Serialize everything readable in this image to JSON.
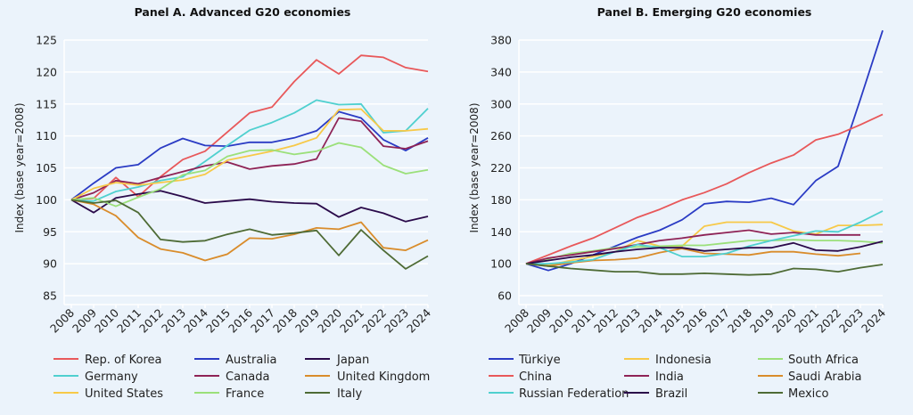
{
  "background": "#ebf3fb",
  "chart_data": [
    {
      "type": "line",
      "title": "Panel A. Advanced G20 economies",
      "ylabel": "Index (base year=2008)",
      "xlabel": "",
      "ylim": [
        85,
        125
      ],
      "yticks": [
        85,
        90,
        95,
        100,
        105,
        110,
        115,
        120,
        125
      ],
      "grid": true,
      "legend": "bottom",
      "x": [
        2008,
        2009,
        2010,
        2011,
        2012,
        2013,
        2014,
        2015,
        2016,
        2017,
        2018,
        2019,
        2020,
        2021,
        2022,
        2023,
        2024
      ],
      "series": [
        {
          "name": "Rep. of Korea",
          "color": "#e8585a",
          "values": [
            100,
            100.2,
            103.5,
            100.5,
            103.6,
            106.3,
            107.6,
            110.6,
            113.6,
            114.5,
            118.5,
            121.9,
            119.7,
            122.6,
            122.3,
            120.7,
            120.1
          ]
        },
        {
          "name": "Australia",
          "color": "#2a3bc4",
          "values": [
            100,
            102.6,
            105.0,
            105.5,
            108.1,
            109.6,
            108.5,
            108.4,
            109.0,
            109.0,
            109.7,
            110.8,
            113.8,
            112.8,
            109.4,
            107.7,
            109.7
          ]
        },
        {
          "name": "Japan",
          "color": "#2a0a4a",
          "values": [
            100,
            98.0,
            100.3,
            100.9,
            101.4,
            100.5,
            99.5,
            99.8,
            100.1,
            99.7,
            99.5,
            99.4,
            97.3,
            98.8,
            97.9,
            96.6,
            97.4
          ]
        },
        {
          "name": "Germany",
          "color": "#4fd0cf",
          "values": [
            100,
            99.8,
            101.3,
            102.0,
            103.0,
            103.6,
            106.0,
            108.5,
            110.9,
            112.1,
            113.6,
            115.6,
            114.9,
            115.0,
            110.5,
            110.8,
            114.3
          ]
        },
        {
          "name": "Canada",
          "color": "#8e2356",
          "values": [
            100,
            101.1,
            103.0,
            102.5,
            103.5,
            104.4,
            105.3,
            105.9,
            104.8,
            105.3,
            105.6,
            106.4,
            112.8,
            112.3,
            108.4,
            108.0,
            109.2
          ]
        },
        {
          "name": "United Kingdom",
          "color": "#d98c2b",
          "values": [
            100,
            99.3,
            97.5,
            94.1,
            92.3,
            91.7,
            90.5,
            91.5,
            94.0,
            93.9,
            94.6,
            95.6,
            95.4,
            96.5,
            92.5,
            92.1,
            93.7
          ]
        },
        {
          "name": "United States",
          "color": "#f7c948",
          "values": [
            100,
            101.8,
            102.7,
            102.3,
            102.7,
            103.1,
            104.0,
            106.2,
            106.9,
            107.6,
            108.5,
            109.7,
            114.1,
            114.2,
            110.8,
            110.8,
            111.1
          ]
        },
        {
          "name": "France",
          "color": "#9be07a",
          "values": [
            100,
            100.3,
            99.0,
            100.4,
            101.7,
            103.9,
            104.6,
            106.8,
            107.7,
            107.8,
            107.1,
            107.6,
            108.9,
            108.2,
            105.4,
            104.1,
            104.7
          ]
        },
        {
          "name": "Italy",
          "color": "#4e6b35",
          "values": [
            100,
            99.5,
            99.9,
            98.0,
            93.8,
            93.4,
            93.6,
            94.6,
            95.4,
            94.5,
            94.8,
            95.2,
            91.3,
            95.3,
            92.1,
            89.2,
            91.2
          ]
        }
      ]
    },
    {
      "type": "line",
      "title": "Panel B. Emerging G20 economies",
      "ylabel": "Index (base year=2008)",
      "xlabel": "",
      "ylim": [
        60,
        380
      ],
      "yticks": [
        60,
        100,
        140,
        180,
        220,
        260,
        300,
        340,
        380
      ],
      "grid": true,
      "legend": "bottom",
      "x": [
        2008,
        2009,
        2010,
        2011,
        2012,
        2013,
        2014,
        2015,
        2016,
        2017,
        2018,
        2019,
        2020,
        2021,
        2022,
        2023,
        2024
      ],
      "series": [
        {
          "name": "Türkiye",
          "color": "#2a3bc4",
          "values": [
            100,
            91.6,
            100,
            111,
            122,
            133,
            142,
            155,
            175,
            178,
            177,
            182,
            174,
            204,
            222,
            306,
            392
          ]
        },
        {
          "name": "Indonesia",
          "color": "#f7c948",
          "values": [
            100,
            98,
            104,
            109,
            115,
            129,
            122,
            122,
            147,
            152,
            152,
            152,
            141,
            137,
            148,
            148,
            149
          ]
        },
        {
          "name": "South Africa",
          "color": "#9be07a",
          "values": [
            100,
            106,
            113,
            116,
            120,
            121,
            122,
            123,
            123,
            126,
            129,
            129,
            130,
            129,
            129,
            128,
            126
          ]
        },
        {
          "name": "China",
          "color": "#e8585a",
          "values": [
            100,
            111,
            122,
            132,
            145,
            158,
            168,
            180,
            189,
            200,
            214,
            226,
            236,
            255,
            262,
            274,
            287
          ]
        },
        {
          "name": "India",
          "color": "#8e2356",
          "values": [
            100,
            107,
            111,
            115,
            119,
            124,
            129,
            132,
            136,
            139,
            142,
            137,
            139,
            136,
            136,
            136,
            null
          ]
        },
        {
          "name": "Saudi Arabia",
          "color": "#d98c2b",
          "values": [
            100,
            97,
            101,
            104,
            105,
            107,
            114,
            119,
            113,
            112,
            111,
            115,
            115,
            112,
            110,
            113,
            null
          ]
        },
        {
          "name": "Russian Federation",
          "color": "#4fd0cf",
          "values": [
            100,
            100,
            102,
            105,
            115,
            124,
            120,
            109,
            109,
            113,
            122,
            129,
            135,
            141,
            140,
            152,
            166
          ]
        },
        {
          "name": "Brazil",
          "color": "#2a0a4a",
          "values": [
            100,
            104,
            108,
            111,
            115,
            118,
            120,
            120,
            116,
            118,
            120,
            120,
            126,
            117,
            116,
            121,
            128
          ]
        },
        {
          "name": "Mexico",
          "color": "#4e6b35",
          "values": [
            100,
            97,
            94,
            92,
            90,
            90,
            87,
            87,
            88,
            87,
            86,
            87,
            94,
            93,
            90,
            95,
            99
          ]
        }
      ]
    }
  ]
}
